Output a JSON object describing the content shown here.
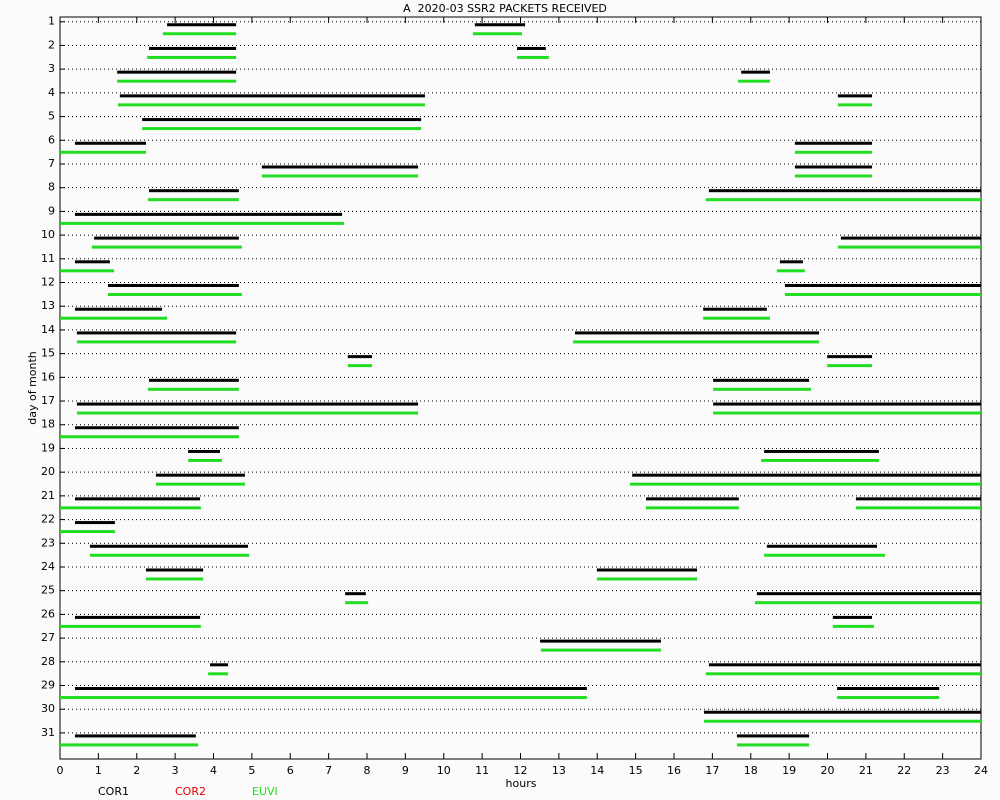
{
  "chart_data": {
    "type": "range",
    "title": "A  2020-03 SSR2 PACKETS RECEIVED",
    "x_label": "hours",
    "y_label": "day of month",
    "xlim": [
      0,
      24
    ],
    "xticks": [
      0,
      1,
      2,
      3,
      4,
      5,
      6,
      7,
      8,
      9,
      10,
      11,
      12,
      13,
      14,
      15,
      16,
      17,
      18,
      19,
      20,
      21,
      22,
      23,
      24
    ],
    "ylim": [
      0.8,
      32.1
    ],
    "yticks": [
      1,
      2,
      3,
      4,
      5,
      6,
      7,
      8,
      9,
      10,
      11,
      12,
      13,
      14,
      15,
      16,
      17,
      18,
      19,
      20,
      21,
      22,
      23,
      24,
      25,
      26,
      27,
      28,
      29,
      30,
      31
    ],
    "y_inverted": true,
    "grid": true,
    "series": [
      {
        "name": "COR1",
        "color": "#000000",
        "segments": [
          [
            1,
            2.79,
            4.59
          ],
          [
            1,
            10.81,
            12.12
          ],
          [
            2,
            2.32,
            4.59
          ],
          [
            2,
            11.91,
            12.66
          ],
          [
            3,
            1.49,
            4.59
          ],
          [
            3,
            17.75,
            18.5
          ],
          [
            4,
            1.56,
            9.51
          ],
          [
            4,
            20.27,
            21.16
          ],
          [
            5,
            2.14,
            9.41
          ],
          [
            6,
            0.39,
            2.24
          ],
          [
            6,
            19.15,
            21.16
          ],
          [
            7,
            5.26,
            9.33
          ],
          [
            7,
            19.15,
            21.16
          ],
          [
            8,
            2.32,
            4.66
          ],
          [
            8,
            16.91,
            24
          ],
          [
            9,
            0.39,
            7.35
          ],
          [
            10,
            0.89,
            4.66
          ],
          [
            10,
            20.35,
            24
          ],
          [
            11,
            0.39,
            1.3
          ],
          [
            11,
            18.76,
            19.36
          ],
          [
            12,
            1.25,
            4.66
          ],
          [
            12,
            18.89,
            24
          ],
          [
            13,
            0.39,
            2.66
          ],
          [
            13,
            16.76,
            18.42
          ],
          [
            14,
            0.44,
            4.59
          ],
          [
            14,
            13.42,
            19.78
          ],
          [
            15,
            7.5,
            8.13
          ],
          [
            15,
            19.99,
            21.16
          ],
          [
            16,
            2.32,
            4.66
          ],
          [
            16,
            17.02,
            19.52
          ],
          [
            17,
            0.44,
            9.33
          ],
          [
            17,
            17.02,
            24
          ],
          [
            18,
            0.39,
            4.66
          ],
          [
            19,
            3.34,
            4.17
          ],
          [
            19,
            18.35,
            21.34
          ],
          [
            20,
            2.5,
            4.82
          ],
          [
            20,
            14.91,
            24
          ],
          [
            21,
            0.39,
            3.65
          ],
          [
            21,
            15.27,
            17.69
          ],
          [
            21,
            20.74,
            24
          ],
          [
            22,
            0.39,
            1.43
          ],
          [
            23,
            0.78,
            4.9
          ],
          [
            23,
            18.42,
            21.29
          ],
          [
            24,
            2.24,
            3.73
          ],
          [
            24,
            13.99,
            16.6
          ],
          [
            25,
            7.43,
            7.97
          ],
          [
            25,
            18.16,
            24
          ],
          [
            26,
            0.39,
            3.65
          ],
          [
            26,
            20.14,
            21.16
          ],
          [
            27,
            12.51,
            15.66
          ],
          [
            28,
            3.91,
            4.38
          ],
          [
            28,
            16.91,
            24
          ],
          [
            29,
            0.39,
            13.73
          ],
          [
            29,
            20.25,
            22.91
          ],
          [
            30,
            16.78,
            24
          ],
          [
            31,
            0.39,
            3.54
          ],
          [
            31,
            17.64,
            19.52
          ]
        ]
      },
      {
        "name": "COR2",
        "color": "#dd0000",
        "segments": []
      },
      {
        "name": "EUVI",
        "color": "#22dd22",
        "segments": [
          [
            1,
            2.68,
            4.59
          ],
          [
            1,
            10.76,
            12.04
          ],
          [
            2,
            2.27,
            4.59
          ],
          [
            2,
            11.91,
            12.74
          ],
          [
            3,
            1.49,
            4.59
          ],
          [
            3,
            17.67,
            18.5
          ],
          [
            4,
            1.51,
            9.51
          ],
          [
            4,
            20.27,
            21.16
          ],
          [
            5,
            2.14,
            9.41
          ],
          [
            6,
            0,
            2.24
          ],
          [
            6,
            19.15,
            21.16
          ],
          [
            7,
            5.26,
            9.33
          ],
          [
            7,
            19.15,
            21.16
          ],
          [
            8,
            2.29,
            4.66
          ],
          [
            8,
            16.83,
            24
          ],
          [
            9,
            0,
            7.4
          ],
          [
            10,
            0.83,
            4.74
          ],
          [
            10,
            20.27,
            24
          ],
          [
            11,
            0,
            1.41
          ],
          [
            11,
            18.68,
            19.41
          ],
          [
            12,
            1.25,
            4.74
          ],
          [
            12,
            18.89,
            24
          ],
          [
            13,
            0,
            2.79
          ],
          [
            13,
            16.76,
            18.5
          ],
          [
            14,
            0.44,
            4.59
          ],
          [
            14,
            13.37,
            19.78
          ],
          [
            15,
            7.5,
            8.13
          ],
          [
            15,
            19.99,
            21.16
          ],
          [
            16,
            2.29,
            4.66
          ],
          [
            16,
            17.02,
            19.57
          ],
          [
            17,
            0.44,
            9.33
          ],
          [
            17,
            17.02,
            24
          ],
          [
            18,
            0,
            4.66
          ],
          [
            19,
            3.34,
            4.22
          ],
          [
            19,
            18.27,
            21.34
          ],
          [
            20,
            2.5,
            4.82
          ],
          [
            20,
            14.85,
            24
          ],
          [
            21,
            0,
            3.67
          ],
          [
            21,
            15.27,
            17.69
          ],
          [
            21,
            20.74,
            24
          ],
          [
            22,
            0,
            1.43
          ],
          [
            23,
            0.78,
            4.93
          ],
          [
            23,
            18.35,
            21.5
          ],
          [
            24,
            2.24,
            3.73
          ],
          [
            24,
            13.99,
            16.6
          ],
          [
            25,
            7.43,
            8.03
          ],
          [
            25,
            18.11,
            24
          ],
          [
            26,
            0,
            3.67
          ],
          [
            26,
            20.14,
            21.21
          ],
          [
            27,
            12.53,
            15.66
          ],
          [
            28,
            3.86,
            4.38
          ],
          [
            28,
            16.83,
            24
          ],
          [
            29,
            0,
            13.73
          ],
          [
            29,
            20.25,
            22.91
          ],
          [
            30,
            16.78,
            24
          ],
          [
            31,
            0,
            3.6
          ],
          [
            31,
            17.64,
            19.52
          ]
        ]
      }
    ]
  }
}
